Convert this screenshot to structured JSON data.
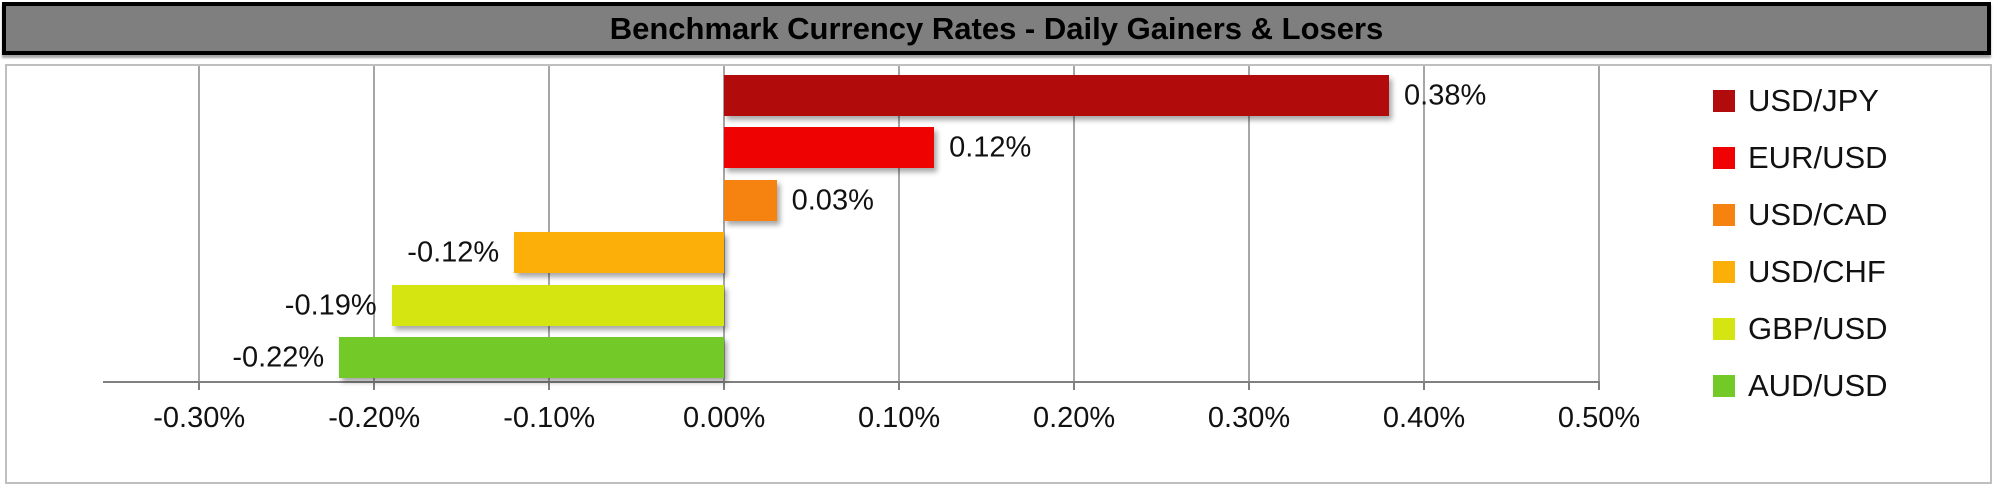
{
  "title_bar": {
    "text": "Benchmark Currency Rates - Daily Gainers & Losers",
    "bg_color": "#7F7F7F",
    "border_color": "#000000",
    "text_color": "#000000"
  },
  "chart_data": {
    "type": "bar",
    "orientation": "horizontal",
    "title": "Benchmark Currency Rates - Daily Gainers & Losers",
    "categories": [
      "USD/JPY",
      "EUR/USD",
      "USD/CAD",
      "USD/CHF",
      "GBP/USD",
      "AUD/USD"
    ],
    "values": [
      0.38,
      0.12,
      0.03,
      -0.12,
      -0.19,
      -0.22
    ],
    "value_labels": [
      "0.38%",
      "0.12%",
      "0.03%",
      "-0.12%",
      "-0.19%",
      "-0.22%"
    ],
    "colors": [
      "#B20B0B",
      "#EE0202",
      "#F6820F",
      "#FBAF08",
      "#D4E512",
      "#72C928"
    ],
    "x_ticks": [
      -0.3,
      -0.2,
      -0.1,
      0.0,
      0.1,
      0.2,
      0.3,
      0.4,
      0.5
    ],
    "x_tick_labels": [
      "-0.30%",
      "-0.20%",
      "-0.10%",
      "0.00%",
      "0.10%",
      "0.20%",
      "0.30%",
      "0.40%",
      "0.50%"
    ],
    "xlim": [
      -0.355,
      0.5
    ],
    "grid": true,
    "legend_position": "right",
    "gridline_color": "#A6A6A6",
    "axis_line_color": "#808080",
    "label_text_color": "#111111"
  }
}
